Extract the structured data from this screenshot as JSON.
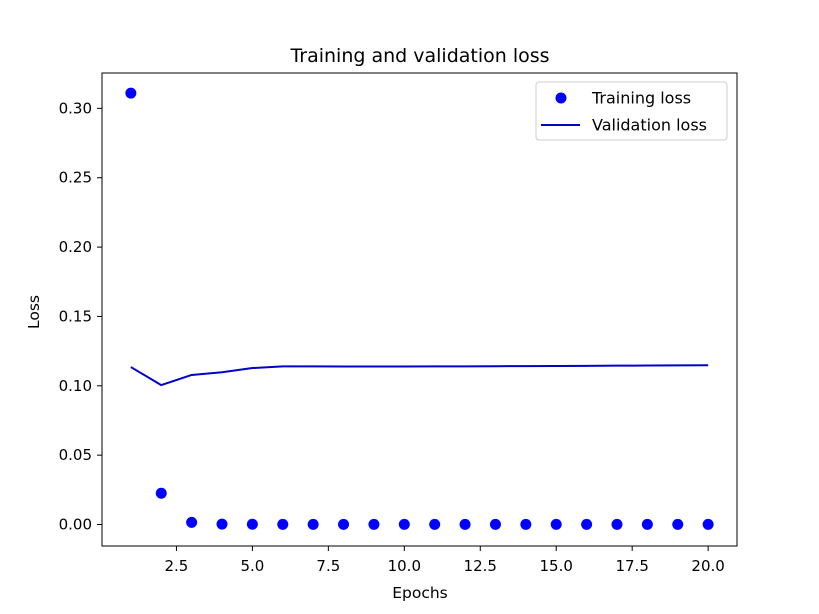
{
  "chart_data": {
    "type": "line",
    "title": "Training and validation loss",
    "xlabel": "Epochs",
    "ylabel": "Loss",
    "xlim": [
      0.05,
      20.95
    ],
    "ylim": [
      -0.0155,
      0.3255
    ],
    "x_ticks": [
      2.5,
      5.0,
      7.5,
      10.0,
      12.5,
      15.0,
      17.5,
      20.0
    ],
    "x_tick_labels": [
      "2.5",
      "5.0",
      "7.5",
      "10.0",
      "12.5",
      "15.0",
      "17.5",
      "20.0"
    ],
    "y_ticks": [
      0.0,
      0.05,
      0.1,
      0.15,
      0.2,
      0.25,
      0.3
    ],
    "y_tick_labels": [
      "0.00",
      "0.05",
      "0.10",
      "0.15",
      "0.20",
      "0.25",
      "0.30"
    ],
    "grid": false,
    "legend_position": "top-right",
    "x": [
      1,
      2,
      3,
      4,
      5,
      6,
      7,
      8,
      9,
      10,
      11,
      12,
      13,
      14,
      15,
      16,
      17,
      18,
      19,
      20
    ],
    "series": [
      {
        "name": "Training loss",
        "style": "markers",
        "color": "#0000ff",
        "values": [
          0.311,
          0.0225,
          0.0015,
          0.0003,
          0.0002,
          0.0001,
          0.0001,
          0.0001,
          0.0001,
          0.0001,
          0.0001,
          0.0001,
          0.0001,
          0.0001,
          0.0001,
          0.0001,
          0.0001,
          0.0001,
          0.0001,
          0.0001
        ]
      },
      {
        "name": "Validation loss",
        "style": "line",
        "color": "#0000cc",
        "values": [
          0.1135,
          0.1005,
          0.1078,
          0.1098,
          0.1128,
          0.114,
          0.114,
          0.1139,
          0.1139,
          0.1139,
          0.114,
          0.114,
          0.1141,
          0.1142,
          0.1143,
          0.1144,
          0.1145,
          0.1146,
          0.1147,
          0.1148
        ]
      }
    ]
  }
}
